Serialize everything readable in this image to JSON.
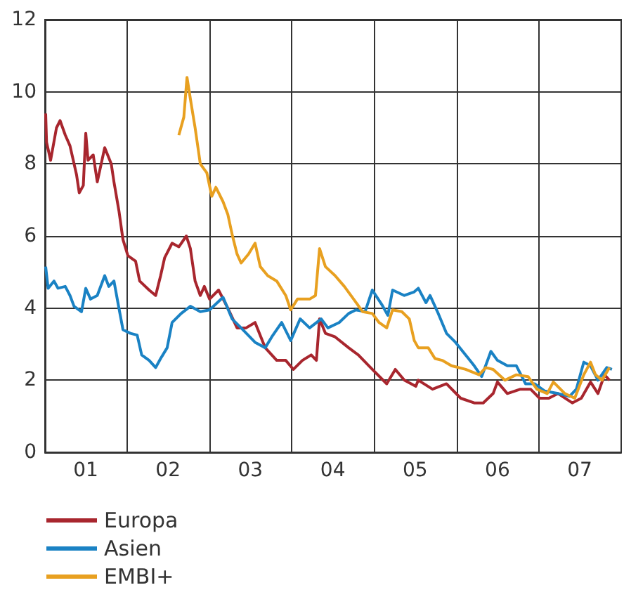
{
  "chart_data": {
    "type": "line",
    "xlim": [
      "2001-01-01",
      "2008-01-01"
    ],
    "ylim": [
      0,
      12
    ],
    "yticks": [
      0,
      2,
      4,
      6,
      8,
      10,
      12
    ],
    "xticks": [
      {
        "value": "2001-07-01",
        "label": "01"
      },
      {
        "value": "2002-07-01",
        "label": "02"
      },
      {
        "value": "2003-07-01",
        "label": "03"
      },
      {
        "value": "2004-07-01",
        "label": "04"
      },
      {
        "value": "2005-07-01",
        "label": "05"
      },
      {
        "value": "2006-07-01",
        "label": "06"
      },
      {
        "value": "2007-07-01",
        "label": "07"
      },
      {
        "value": "2002-01-01",
        "label": null
      },
      {
        "value": "2003-01-01",
        "label": null
      },
      {
        "value": "2004-01-01",
        "label": null
      },
      {
        "value": "2005-01-01",
        "label": null
      },
      {
        "value": "2006-01-01",
        "label": null
      },
      {
        "value": "2007-01-01",
        "label": null
      }
    ],
    "grid": true,
    "legend": "bottom",
    "marker": "none",
    "line_style": "solid",
    "series": [
      {
        "name": "Europa",
        "color": "#a8262e",
        "x": [
          "2001-01-04",
          "2001-01-08",
          "2001-01-26",
          "2001-02-21",
          "2001-03-09",
          "2001-04-01",
          "2001-04-22",
          "2001-05-21",
          "2001-06-02",
          "2001-06-20",
          "2001-07-01",
          "2001-07-11",
          "2001-08-03",
          "2001-08-21",
          "2001-09-23",
          "2001-10-22",
          "2001-11-03",
          "2001-11-25",
          "2001-12-13",
          "2002-01-04",
          "2002-02-07",
          "2002-02-25",
          "2002-04-08",
          "2002-05-07",
          "2002-05-29",
          "2002-06-16",
          "2002-07-19",
          "2002-08-18",
          "2002-09-20",
          "2002-10-08",
          "2002-10-29",
          "2002-11-21",
          "2002-12-09",
          "2003-01-01",
          "2003-02-10",
          "2003-03-23",
          "2003-05-03",
          "2003-06-12",
          "2003-07-22",
          "2003-09-05",
          "2003-10-04",
          "2003-10-26",
          "2003-12-05",
          "2004-01-08",
          "2004-02-17",
          "2004-03-27",
          "2004-04-19",
          "2004-05-03",
          "2004-05-29",
          "2004-07-11",
          "2004-09-09",
          "2004-10-22",
          "2004-12-23",
          "2005-02-25",
          "2005-04-04",
          "2005-05-14",
          "2005-07-04",
          "2005-07-15",
          "2005-09-16",
          "2005-11-17",
          "2006-01-19",
          "2006-03-20",
          "2006-04-29",
          "2006-06-12",
          "2006-07-01",
          "2006-08-14",
          "2006-10-11",
          "2006-11-25",
          "2007-01-04",
          "2007-02-14",
          "2007-03-27",
          "2007-05-29",
          "2007-07-08",
          "2007-08-18",
          "2007-09-20",
          "2007-10-19",
          "2007-11-10"
        ],
        "values": [
          9.4,
          8.6,
          8.1,
          9.0,
          9.2,
          8.8,
          8.5,
          7.7,
          7.2,
          7.4,
          8.85,
          8.1,
          8.25,
          7.5,
          8.45,
          8.0,
          7.5,
          6.7,
          5.9,
          5.45,
          5.3,
          4.75,
          4.5,
          4.35,
          4.9,
          5.4,
          5.8,
          5.7,
          6.0,
          5.65,
          4.75,
          4.35,
          4.6,
          4.25,
          4.5,
          4.0,
          3.45,
          3.45,
          3.6,
          2.9,
          2.7,
          2.55,
          2.55,
          2.3,
          2.55,
          2.7,
          2.55,
          3.7,
          3.3,
          3.2,
          2.9,
          2.7,
          2.3,
          1.9,
          2.3,
          2.0,
          1.83,
          2.0,
          1.75,
          1.9,
          1.5,
          1.37,
          1.37,
          1.63,
          1.95,
          1.63,
          1.75,
          1.75,
          1.5,
          1.5,
          1.63,
          1.37,
          1.5,
          1.95,
          1.63,
          2.15,
          2.0
        ]
      },
      {
        "name": "Asien",
        "color": "#1a82c4",
        "x": [
          "2001-01-04",
          "2001-01-15",
          "2001-02-10",
          "2001-02-28",
          "2001-04-01",
          "2001-04-22",
          "2001-05-10",
          "2001-06-12",
          "2001-07-01",
          "2001-07-22",
          "2001-08-21",
          "2001-09-23",
          "2001-10-11",
          "2001-11-03",
          "2001-11-25",
          "2001-12-13",
          "2002-01-15",
          "2002-02-14",
          "2002-03-06",
          "2002-04-08",
          "2002-05-07",
          "2002-05-29",
          "2002-06-27",
          "2002-07-19",
          "2002-08-28",
          "2002-10-08",
          "2002-11-21",
          "2003-01-01",
          "2003-03-02",
          "2003-04-11",
          "2003-05-21",
          "2003-07-22",
          "2003-09-05",
          "2003-10-04",
          "2003-11-17",
          "2003-12-27",
          "2004-02-07",
          "2004-03-20",
          "2004-05-10",
          "2004-06-09",
          "2004-07-29",
          "2004-09-09",
          "2004-10-11",
          "2004-11-21",
          "2004-12-23",
          "2005-02-03",
          "2005-03-02",
          "2005-03-23",
          "2005-05-14",
          "2005-06-27",
          "2005-07-15",
          "2005-08-18",
          "2005-09-05",
          "2005-10-08",
          "2005-11-17",
          "2005-12-27",
          "2006-02-10",
          "2006-03-20",
          "2006-04-22",
          "2006-06-02",
          "2006-07-01",
          "2006-08-14",
          "2006-09-23",
          "2006-11-03",
          "2006-12-13",
          "2007-01-26",
          "2007-03-27",
          "2007-05-17",
          "2007-06-16",
          "2007-07-19",
          "2007-08-18",
          "2007-09-20",
          "2007-10-29",
          "2007-11-21"
        ],
        "values": [
          5.15,
          4.55,
          4.75,
          4.55,
          4.6,
          4.35,
          4.05,
          3.9,
          4.55,
          4.25,
          4.35,
          4.9,
          4.6,
          4.75,
          4.0,
          3.4,
          3.3,
          3.25,
          2.7,
          2.55,
          2.35,
          2.6,
          2.9,
          3.6,
          3.85,
          4.05,
          3.9,
          3.95,
          4.3,
          3.7,
          3.45,
          3.05,
          2.9,
          3.2,
          3.6,
          3.1,
          3.7,
          3.45,
          3.7,
          3.45,
          3.6,
          3.85,
          3.95,
          3.9,
          4.5,
          4.1,
          3.8,
          4.5,
          4.35,
          4.45,
          4.55,
          4.15,
          4.35,
          3.9,
          3.3,
          3.05,
          2.7,
          2.4,
          2.1,
          2.8,
          2.55,
          2.4,
          2.4,
          1.9,
          1.9,
          1.7,
          1.63,
          1.55,
          1.75,
          2.5,
          2.4,
          2.0,
          2.35,
          2.3
        ]
      },
      {
        "name": "EMBI+",
        "color": "#e8a020",
        "x": [
          "2002-08-18",
          "2002-09-09",
          "2002-09-23",
          "2002-10-08",
          "2002-10-29",
          "2002-11-21",
          "2002-12-20",
          "2003-01-11",
          "2003-01-29",
          "2003-03-02",
          "2003-03-23",
          "2003-04-11",
          "2003-05-03",
          "2003-05-21",
          "2003-06-23",
          "2003-07-22",
          "2003-08-14",
          "2003-09-16",
          "2003-10-26",
          "2003-12-05",
          "2003-12-27",
          "2004-01-26",
          "2004-03-20",
          "2004-04-15",
          "2004-05-03",
          "2004-05-29",
          "2004-07-11",
          "2004-08-21",
          "2004-10-01",
          "2004-11-10",
          "2004-12-23",
          "2005-01-22",
          "2005-02-25",
          "2005-03-23",
          "2005-05-03",
          "2005-06-05",
          "2005-06-27",
          "2005-07-15",
          "2005-08-28",
          "2005-09-27",
          "2005-10-29",
          "2005-12-09",
          "2006-02-10",
          "2006-04-11",
          "2006-05-10",
          "2006-06-12",
          "2006-08-03",
          "2006-09-23",
          "2006-11-14",
          "2006-12-23",
          "2007-02-07",
          "2007-03-06",
          "2007-04-26",
          "2007-06-09",
          "2007-07-19",
          "2007-08-18",
          "2007-09-09",
          "2007-10-08",
          "2007-11-10"
        ],
        "values": [
          8.8,
          9.3,
          10.4,
          9.8,
          9.0,
          8.0,
          7.75,
          7.1,
          7.35,
          6.95,
          6.6,
          6.05,
          5.5,
          5.25,
          5.5,
          5.8,
          5.15,
          4.9,
          4.75,
          4.35,
          3.95,
          4.25,
          4.25,
          4.35,
          5.65,
          5.15,
          4.9,
          4.6,
          4.25,
          3.9,
          3.85,
          3.6,
          3.45,
          3.95,
          3.9,
          3.7,
          3.1,
          2.9,
          2.9,
          2.6,
          2.55,
          2.4,
          2.3,
          2.15,
          2.35,
          2.3,
          2.0,
          2.15,
          2.1,
          1.75,
          1.63,
          1.95,
          1.63,
          1.5,
          2.15,
          2.5,
          2.15,
          2.0,
          2.35
        ]
      }
    ]
  }
}
